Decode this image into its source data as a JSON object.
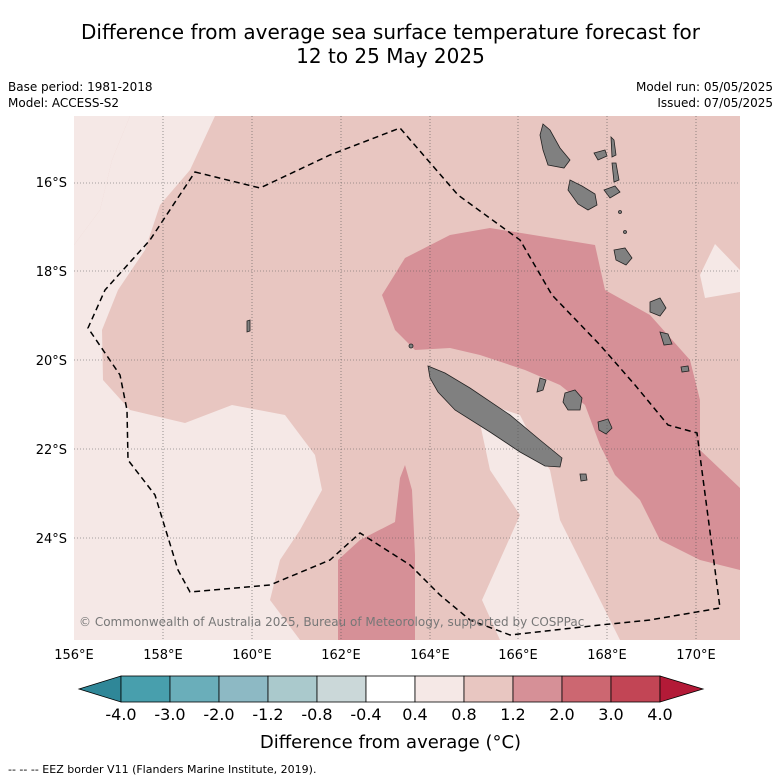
{
  "title": {
    "line1": "Difference from average sea surface temperature forecast for",
    "line2": "12 to 25 May 2025"
  },
  "meta": {
    "base_period": "Base period: 1981-2018",
    "model": "Model: ACCESS-S2",
    "model_run": "Model run: 05/05/2025",
    "issued": "Issued: 07/05/2025"
  },
  "map": {
    "lon_ticks": [
      "156°E",
      "158°E",
      "160°E",
      "162°E",
      "164°E",
      "166°E",
      "168°E",
      "170°E"
    ],
    "lat_ticks": [
      "16°S",
      "18°S",
      "20°S",
      "22°S",
      "24°S"
    ],
    "copyright": "© Commonwealth of Australia 2025, Bureau of Meteorology, supported by COSPPac",
    "land_color": "#808080"
  },
  "colorbar": {
    "labels": [
      "-4.0",
      "-3.0",
      "-2.0",
      "-1.2",
      "-0.8",
      "-0.4",
      "0.4",
      "0.8",
      "1.2",
      "2.0",
      "3.0",
      "4.0"
    ],
    "colors": [
      "#489fad",
      "#6aaeba",
      "#8db9c4",
      "#aac9cc",
      "#cbd8d9",
      "#ffffff",
      "#f5e8e6",
      "#e8c6c1",
      "#d69097",
      "#cc6771",
      "#c24555"
    ],
    "low_color": "#2f8798",
    "high_color": "#b31a37",
    "title": "Difference from average (°C)"
  },
  "footnote": "-- -- -- EEZ border V11 (Flanders Marine Institute, 2019)."
}
